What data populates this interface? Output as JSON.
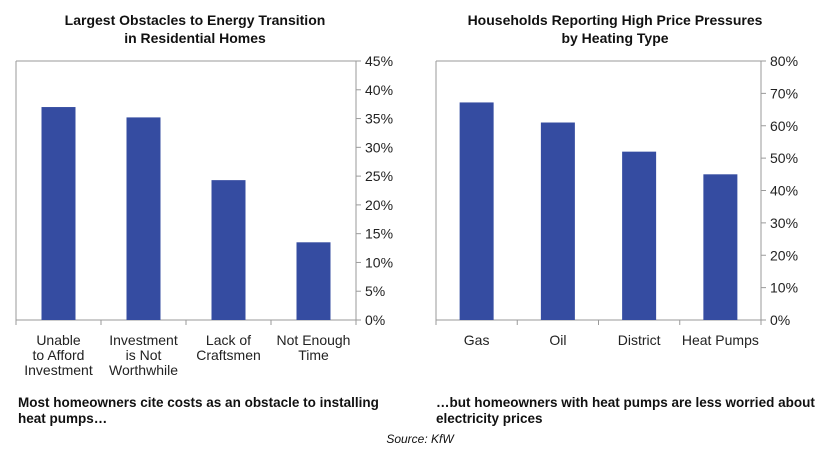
{
  "chart_data": [
    {
      "type": "bar",
      "title_line1": "Largest Obstacles to Energy Transition",
      "title_line2": "in Residential Homes",
      "categories": [
        [
          "Unable",
          "to Afford",
          "Investment"
        ],
        [
          "Investment",
          "is Not",
          "Worthwhile"
        ],
        [
          "Lack of",
          "Craftsmen"
        ],
        [
          "Not Enough",
          "Time"
        ]
      ],
      "values": [
        37,
        35.2,
        24.3,
        13.5
      ],
      "ylim": [
        0,
        45
      ],
      "yticks": [
        0,
        5,
        10,
        15,
        20,
        25,
        30,
        35,
        40,
        45
      ],
      "ytick_labels": [
        "0%",
        "5%",
        "10%",
        "15%",
        "20%",
        "25%",
        "30%",
        "35%",
        "40%",
        "45%"
      ],
      "axis_position": "right",
      "caption": "Most homeowners cite costs as an obstacle to installing heat pumps…",
      "color": "#354ca1"
    },
    {
      "type": "bar",
      "title_line1": "Households Reporting High Price Pressures",
      "title_line2": "by Heating Type",
      "categories": [
        [
          "Gas"
        ],
        [
          "Oil"
        ],
        [
          "District"
        ],
        [
          "Heat Pumps"
        ]
      ],
      "values": [
        67.2,
        61,
        52,
        45
      ],
      "ylim": [
        0,
        80
      ],
      "yticks": [
        0,
        10,
        20,
        30,
        40,
        50,
        60,
        70,
        80
      ],
      "ytick_labels": [
        "0%",
        "10%",
        "20%",
        "30%",
        "40%",
        "50%",
        "60%",
        "70%",
        "80%"
      ],
      "axis_position": "right",
      "caption": "…but homeowners with heat pumps are less worried about electricity prices",
      "color": "#354ca1"
    }
  ],
  "source": "Source: KfW"
}
